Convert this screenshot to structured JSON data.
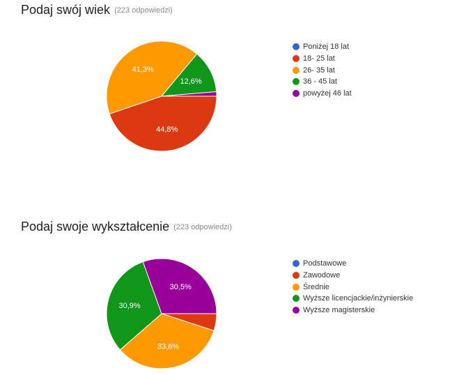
{
  "colors": {
    "blue": "#3366cc",
    "red": "#dc3912",
    "orange": "#ff9900",
    "green": "#109618",
    "purple": "#990099"
  },
  "questions": [
    {
      "title": "Podaj swój wiek",
      "response_count": "(223 odpowiedzi)"
    },
    {
      "title": "Podaj swoje wykształcenie",
      "response_count": "(223 odpowiedzi)"
    }
  ],
  "chart_data": [
    {
      "type": "pie",
      "title": "Podaj swój wiek",
      "categories": [
        "Poniżej 18 lat",
        "18- 25 lat",
        "26- 35 lat",
        "36 - 45 lat",
        "powyżej 46 lat"
      ],
      "values": [
        0,
        44.8,
        41.3,
        12.6,
        1.3
      ],
      "colors": [
        "#3366cc",
        "#dc3912",
        "#ff9900",
        "#109618",
        "#990099"
      ],
      "data_labels": [
        "",
        "44,8%",
        "41,3%",
        "12,6%",
        ""
      ],
      "legend_position": "right"
    },
    {
      "type": "pie",
      "title": "Podaj swoje wykształcenie",
      "categories": [
        "Podstawowe",
        "Zawodowe",
        "Średnie",
        "Wyższe licencjackie/inżynierskie",
        "Wyższe magisterskie"
      ],
      "values": [
        0,
        5.0,
        33.6,
        30.9,
        30.5
      ],
      "colors": [
        "#3366cc",
        "#dc3912",
        "#ff9900",
        "#109618",
        "#990099"
      ],
      "data_labels": [
        "",
        "",
        "33,6%",
        "30,9%",
        "30,5%"
      ],
      "legend_position": "right"
    }
  ]
}
